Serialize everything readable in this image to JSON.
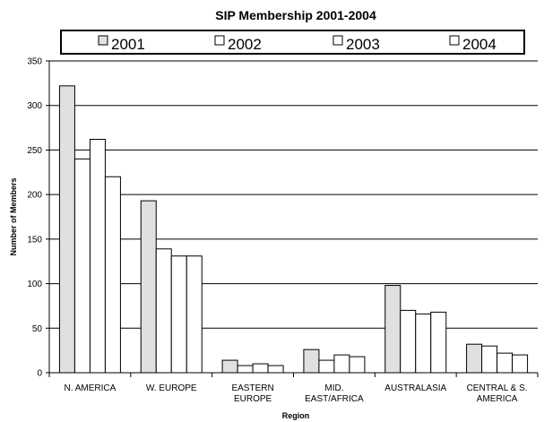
{
  "chart_data": {
    "type": "bar",
    "title": "SIP Membership 2001-2004",
    "xlabel": "Region",
    "ylabel": "Number of Members",
    "ylim": [
      0,
      350
    ],
    "yticks": [
      0,
      50,
      100,
      150,
      200,
      250,
      300,
      350
    ],
    "grid": true,
    "legend_position": "top",
    "categories": [
      [
        "N. AMERICA"
      ],
      [
        "W. EUROPE"
      ],
      [
        "EASTERN",
        "EUROPE"
      ],
      [
        "MID.",
        "EAST/AFRICA"
      ],
      [
        "AUSTRALASIA"
      ],
      [
        "CENTRAL & S.",
        "AMERICA"
      ]
    ],
    "series": [
      {
        "name": "2001",
        "color": "#e0e0e0",
        "values": [
          322,
          193,
          14,
          26,
          98,
          32
        ]
      },
      {
        "name": "2002",
        "color": "#ffffff",
        "values": [
          240,
          139,
          8,
          14,
          70,
          30
        ]
      },
      {
        "name": "2003",
        "color": "#ffffff",
        "values": [
          262,
          131,
          10,
          20,
          66,
          22
        ]
      },
      {
        "name": "2004",
        "color": "#ffffff",
        "values": [
          220,
          131,
          8,
          18,
          68,
          20
        ]
      }
    ]
  }
}
